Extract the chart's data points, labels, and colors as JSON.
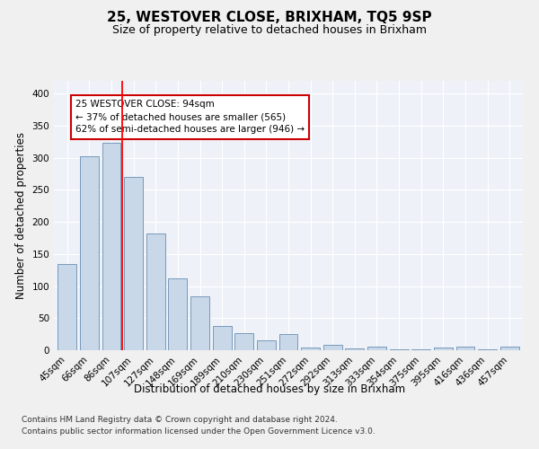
{
  "title": "25, WESTOVER CLOSE, BRIXHAM, TQ5 9SP",
  "subtitle": "Size of property relative to detached houses in Brixham",
  "xlabel": "Distribution of detached houses by size in Brixham",
  "ylabel": "Number of detached properties",
  "categories": [
    "45sqm",
    "66sqm",
    "86sqm",
    "107sqm",
    "127sqm",
    "148sqm",
    "169sqm",
    "189sqm",
    "210sqm",
    "230sqm",
    "251sqm",
    "272sqm",
    "292sqm",
    "313sqm",
    "333sqm",
    "354sqm",
    "375sqm",
    "395sqm",
    "416sqm",
    "436sqm",
    "457sqm"
  ],
  "values": [
    135,
    302,
    323,
    270,
    182,
    112,
    84,
    38,
    26,
    15,
    25,
    4,
    9,
    3,
    5,
    1,
    2,
    4,
    5,
    1,
    5
  ],
  "bar_color": "#c8d8e8",
  "bar_edge_color": "#7799bb",
  "red_line_x": 2.5,
  "annotation_text": "25 WESTOVER CLOSE: 94sqm\n← 37% of detached houses are smaller (565)\n62% of semi-detached houses are larger (946) →",
  "annotation_box_color": "#ffffff",
  "annotation_box_edge_color": "#cc0000",
  "ylim": [
    0,
    420
  ],
  "yticks": [
    0,
    50,
    100,
    150,
    200,
    250,
    300,
    350,
    400
  ],
  "footer1": "Contains HM Land Registry data © Crown copyright and database right 2024.",
  "footer2": "Contains public sector information licensed under the Open Government Licence v3.0.",
  "background_color": "#eef2f8",
  "grid_color": "#ffffff",
  "title_fontsize": 11,
  "subtitle_fontsize": 9,
  "axis_label_fontsize": 8.5,
  "tick_fontsize": 7.5,
  "annotation_fontsize": 7.5,
  "footer_fontsize": 6.5
}
